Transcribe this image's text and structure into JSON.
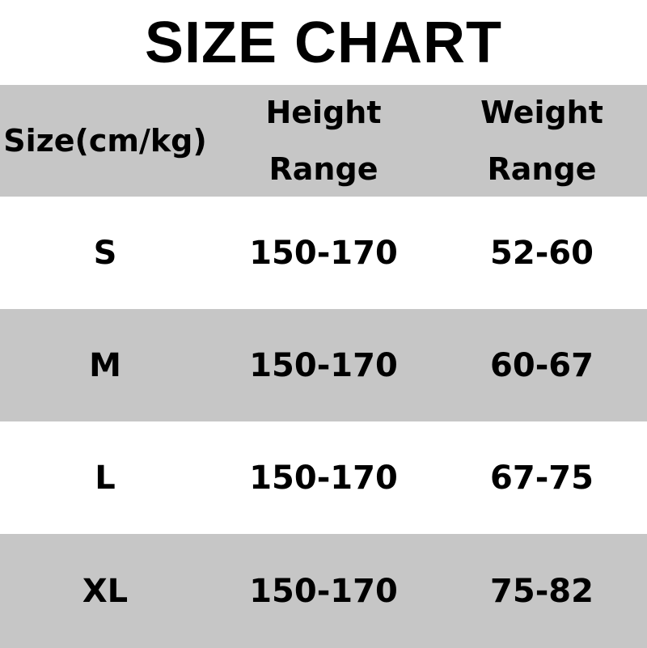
{
  "title": "SIZE CHART",
  "colors": {
    "header_bg": "#c6c6c6",
    "stripe_bg": "#c6c6c6",
    "row_bg": "#ffffff",
    "text": "#000000"
  },
  "table": {
    "headers": [
      "Size(cm/kg)",
      "Height\nRange",
      "Weight\nRange"
    ],
    "header_lines": {
      "size": "Size(cm/kg)",
      "height_1": "Height",
      "height_2": "Range",
      "weight_1": "Weight",
      "weight_2": "Range"
    },
    "rows": [
      {
        "size": "S",
        "height": "150-170",
        "weight": "52-60"
      },
      {
        "size": "M",
        "height": "150-170",
        "weight": "60-67"
      },
      {
        "size": "L",
        "height": "150-170",
        "weight": "67-75"
      },
      {
        "size": "XL",
        "height": "150-170",
        "weight": "75-82"
      }
    ]
  }
}
